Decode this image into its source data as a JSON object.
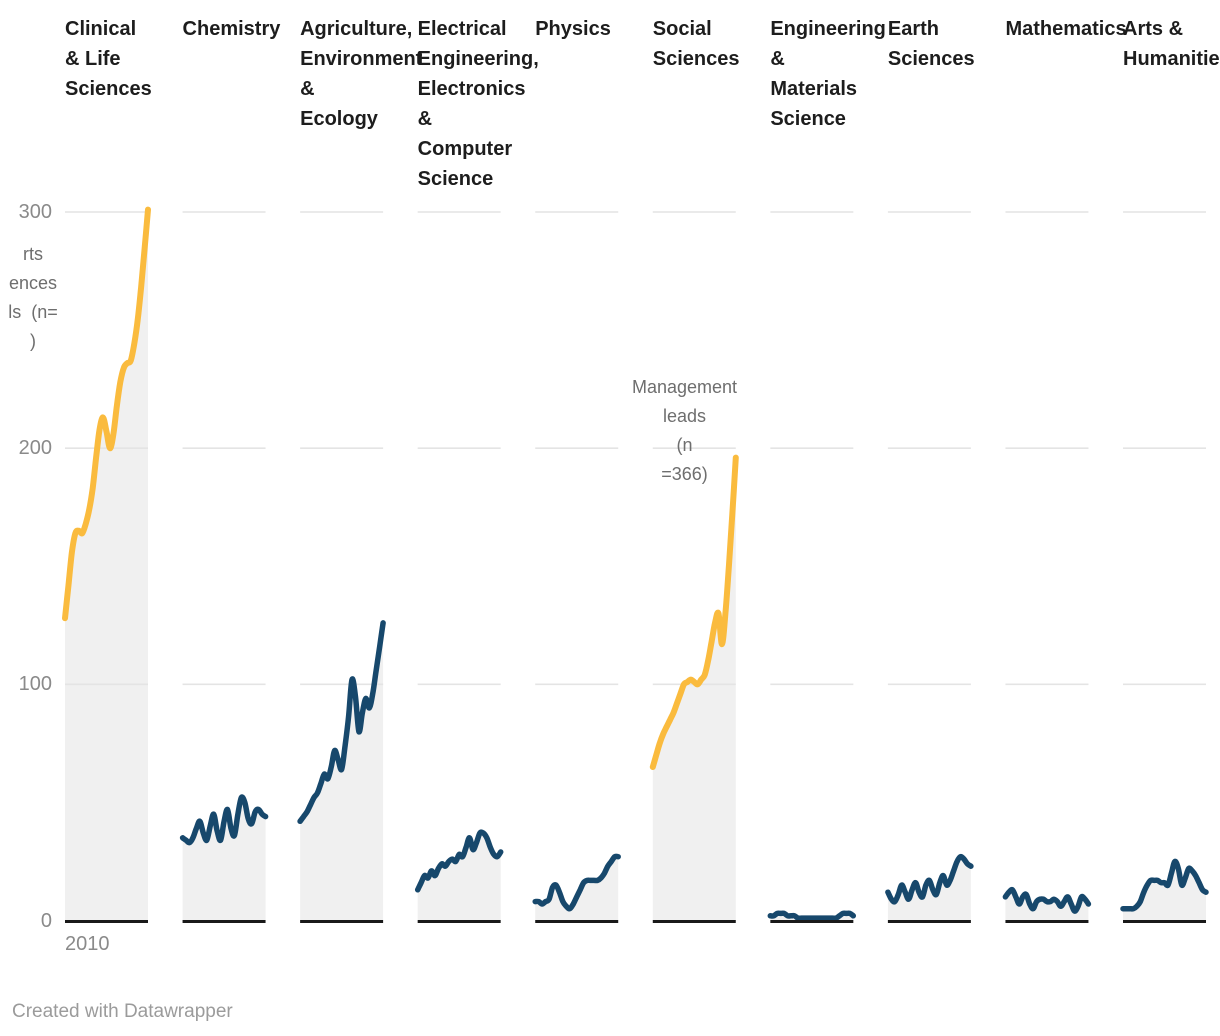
{
  "colors": {
    "highlight_line": "#FABB3E",
    "default_line": "#17486C",
    "area_fill": "#F0F0F0",
    "gridline": "#E4E4E4",
    "baseline": "#191919",
    "header_text": "#1d1d1d",
    "tick_text": "#8a8a8a",
    "annotation_text": "#6e6e6e",
    "footer_text": "#9b9b9b"
  },
  "y_axis": {
    "ticks": [
      {
        "label": "0",
        "value": 0
      },
      {
        "label": "100",
        "value": 100
      },
      {
        "label": "200",
        "value": 200
      },
      {
        "label": "300",
        "value": 300
      }
    ]
  },
  "x_axis": {
    "start_label": "2010"
  },
  "annotations": {
    "left_clipped": {
      "text": "rts\nences\nls  (n=\n)"
    },
    "management": {
      "text": "Management\nleads\n(n\n=366)"
    }
  },
  "footer": {
    "credit": "Created with Datawrapper"
  },
  "chart_data": {
    "type": "line",
    "small_multiples": true,
    "x_start_label": "2010",
    "ylim": [
      0,
      300
    ],
    "y_gridlines": [
      100,
      200,
      300
    ],
    "legend": "none",
    "panels": [
      {
        "label": "Clinical\n& Life\nSciences",
        "color": "highlight",
        "values": [
          128,
          142,
          156,
          164,
          165,
          164,
          168,
          174,
          183,
          196,
          208,
          213,
          207,
          200,
          206,
          218,
          228,
          234,
          236,
          237,
          244,
          254,
          268,
          284,
          301
        ]
      },
      {
        "label": "Chemistry",
        "color": "default",
        "values": [
          35,
          34,
          33,
          35,
          39,
          42,
          37,
          34,
          40,
          45,
          38,
          34,
          42,
          47,
          39,
          36,
          45,
          52,
          50,
          43,
          41,
          46,
          47,
          45,
          44
        ]
      },
      {
        "label": "Agriculture,\nEnvironment\n&\nEcology",
        "color": "default",
        "values": [
          42,
          44,
          46,
          49,
          52,
          54,
          58,
          62,
          60,
          65,
          72,
          68,
          64,
          74,
          86,
          102,
          95,
          80,
          88,
          94,
          90,
          96,
          106,
          116,
          126
        ]
      },
      {
        "label": "Electrical\nEngineering,\nElectronics\n&\nComputer\nScience",
        "color": "default",
        "values": [
          13,
          16,
          19,
          18,
          21,
          19,
          22,
          24,
          23,
          25,
          26,
          25,
          28,
          27,
          31,
          35,
          30,
          33,
          37,
          37,
          35,
          31,
          28,
          27,
          29
        ]
      },
      {
        "label": "Physics",
        "color": "default",
        "values": [
          8,
          8,
          7,
          8,
          9,
          14,
          15,
          12,
          8,
          6,
          5,
          7,
          10,
          13,
          16,
          17,
          17,
          17,
          17,
          18,
          20,
          23,
          25,
          27,
          27
        ]
      },
      {
        "label": "Social\nSciences",
        "color": "highlight",
        "values": [
          65,
          70,
          75,
          79,
          82,
          85,
          88,
          92,
          96,
          100,
          101,
          102,
          101,
          100,
          102,
          104,
          110,
          118,
          126,
          130,
          117,
          130,
          150,
          172,
          196
        ]
      },
      {
        "label": "Engineering\n&\nMaterials\nScience",
        "color": "default",
        "values": [
          2,
          2,
          3,
          3,
          3,
          2,
          2,
          2,
          1,
          1,
          1,
          1,
          1,
          1,
          1,
          1,
          1,
          1,
          1,
          1,
          2,
          3,
          3,
          3,
          2
        ]
      },
      {
        "label": "Earth\nSciences",
        "color": "default",
        "values": [
          12,
          9,
          8,
          11,
          15,
          12,
          9,
          13,
          16,
          12,
          10,
          15,
          17,
          13,
          11,
          16,
          19,
          15,
          17,
          21,
          25,
          27,
          26,
          24,
          23
        ]
      },
      {
        "label": "Mathematics",
        "color": "default",
        "values": [
          10,
          12,
          13,
          10,
          7,
          10,
          11,
          7,
          5,
          8,
          9,
          9,
          8,
          8,
          9,
          8,
          6,
          8,
          10,
          7,
          4,
          6,
          10,
          9,
          7
        ]
      },
      {
        "label": "Arts &\nHumanities",
        "color": "default",
        "values": [
          5,
          5,
          5,
          5,
          6,
          8,
          12,
          15,
          17,
          17,
          17,
          16,
          16,
          15,
          20,
          25,
          22,
          15,
          18,
          22,
          21,
          19,
          16,
          13,
          12
        ]
      }
    ]
  }
}
